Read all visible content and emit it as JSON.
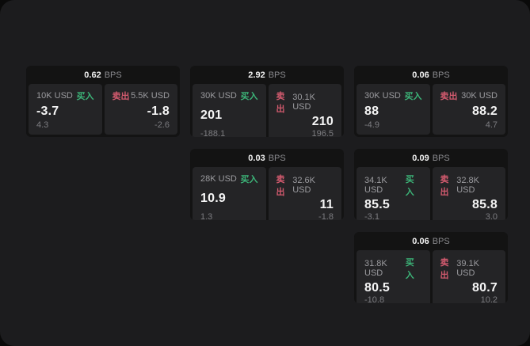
{
  "labels": {
    "bps_unit": "BPS",
    "buy": "买入",
    "sell": "卖出"
  },
  "colors": {
    "window_bg": "#1c1c1e",
    "card_bg": "#131313",
    "panel_bg": "#242426",
    "buy_green": "#3cb478",
    "sell_red": "#d25a6e"
  },
  "cards": [
    {
      "bps": "0.62",
      "buy": {
        "size": "10K USD",
        "price": "-3.7",
        "change": "4.3"
      },
      "sell": {
        "size": "5.5K USD",
        "price": "-1.8",
        "change": "-2.6"
      }
    },
    {
      "bps": "2.92",
      "buy": {
        "size": "30K USD",
        "price": "201",
        "change": "-188.1"
      },
      "sell": {
        "size": "30.1K USD",
        "price": "210",
        "change": "196.5"
      }
    },
    {
      "bps": "0.06",
      "buy": {
        "size": "30K USD",
        "price": "88",
        "change": "-4.9"
      },
      "sell": {
        "size": "30K USD",
        "price": "88.2",
        "change": "4.7"
      }
    },
    {
      "bps": "0.03",
      "buy": {
        "size": "28K USD",
        "price": "10.9",
        "change": "1.3"
      },
      "sell": {
        "size": "32.6K USD",
        "price": "11",
        "change": "-1.8"
      }
    },
    {
      "bps": "0.09",
      "buy": {
        "size": "34.1K USD",
        "price": "85.5",
        "change": "-3.1"
      },
      "sell": {
        "size": "32.8K USD",
        "price": "85.8",
        "change": "3.0"
      }
    },
    {
      "bps": "0.06",
      "buy": {
        "size": "31.8K USD",
        "price": "80.5",
        "change": "-10.8"
      },
      "sell": {
        "size": "39.1K USD",
        "price": "80.7",
        "change": "10.2"
      }
    }
  ]
}
